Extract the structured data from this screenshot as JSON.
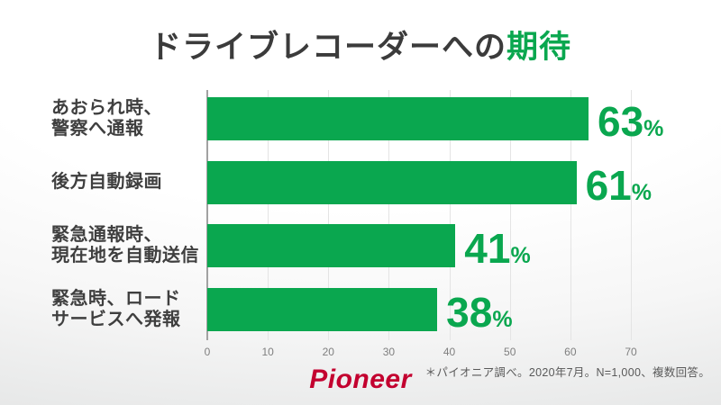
{
  "title": {
    "prefix": "ドライブレコーダーへの",
    "accent": "期待"
  },
  "chart_data": {
    "type": "bar",
    "orientation": "horizontal",
    "title": "ドライブレコーダーへの期待",
    "categories": [
      [
        "あおられ時、",
        "警察へ通報"
      ],
      [
        "後方自動録画"
      ],
      [
        "緊急通報時、",
        "現在地を自動送信"
      ],
      [
        "緊急時、ロード",
        "サービスへ発報"
      ]
    ],
    "values": [
      63,
      61,
      41,
      38
    ],
    "value_suffix": "%",
    "xlim": [
      0,
      70
    ],
    "x_ticks": [
      "0",
      "10",
      "20",
      "30",
      "40",
      "50",
      "60",
      "70"
    ],
    "grid": true,
    "legend": "none"
  },
  "footer": {
    "note": "＊パイオニア調べ。2020年7月。N=1,000、複数回答。",
    "logo_text": "Pioneer"
  },
  "colors": {
    "bar_green": "#0aa74f",
    "accent_green": "#0aa74f",
    "title_gray": "#3b3b3b",
    "label_gray": "#3f3f3f",
    "tick_gray": "#7f7f7f",
    "note_gray": "#595959",
    "logo_red": "#c3002f",
    "gridline": "#e4e4e4",
    "axis_line": "#a2a2a2"
  }
}
